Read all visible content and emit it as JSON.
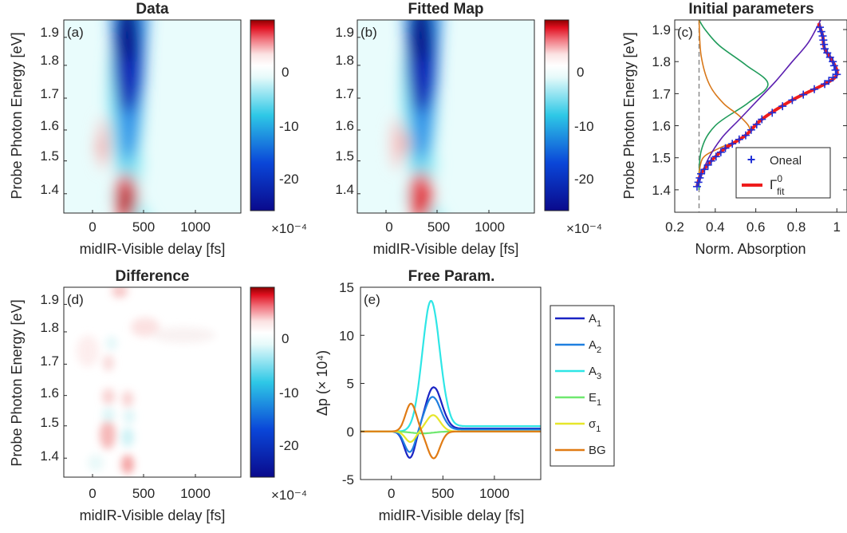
{
  "colors": {
    "A1": "#1a24c4",
    "A2": "#1f7fe0",
    "A3": "#2ee6e6",
    "E1": "#6fe86f",
    "sigma1": "#e6e62a",
    "BG": "#e07b14",
    "oneal": "#1f2fd6",
    "fit": "#ee1c1c",
    "c_green": "#1f9b5a",
    "c_purple": "#5b1fb0",
    "c_orange": "#d8781a"
  },
  "maps": [
    {
      "title": "Data",
      "label": "(a)",
      "xlabel": "midIR-Visible delay [fs]",
      "ylabel": "Probe Photon Energy [eV]",
      "xticks": [
        "0",
        "500",
        "1000"
      ],
      "yticks": [
        "1.9",
        "1.8",
        "1.7",
        "1.6",
        "1.5",
        "1.4"
      ],
      "cbar_ticks": [
        "0",
        "-10",
        "-20"
      ],
      "cbar_exp": "×10⁻⁴"
    },
    {
      "title": "Fitted Map",
      "label": "(b)",
      "xlabel": "midIR-Visible delay [fs]",
      "xticks": [
        "0",
        "500",
        "1000"
      ],
      "yticks": [
        "1.9",
        "1.8",
        "1.7",
        "1.6",
        "1.5",
        "1.4"
      ],
      "cbar_ticks": [
        "0",
        "-10",
        "-20"
      ],
      "cbar_exp": "×10⁻⁴"
    },
    {
      "title": "Difference",
      "label": "(d)",
      "xlabel": "midIR-Visible delay [fs]",
      "ylabel": "Probe Photon Energy [eV]",
      "xticks": [
        "0",
        "500",
        "1000"
      ],
      "yticks": [
        "1.9",
        "1.8",
        "1.7",
        "1.6",
        "1.5",
        "1.4"
      ],
      "cbar_ticks": [
        "0",
        "-10",
        "-20"
      ],
      "cbar_exp": "×10⁻⁴"
    }
  ],
  "chart_data": [
    {
      "type": "heatmap",
      "panel": "a",
      "title": "Data",
      "xlabel": "midIR-Visible delay [fs]",
      "ylabel": "Probe Photon Energy [eV]",
      "xlim": [
        -300,
        1450
      ],
      "ylim": [
        1.33,
        1.93
      ],
      "clim": [
        -25,
        8
      ],
      "colorbar_scale": "1e-4",
      "features": [
        {
          "kind": "bleach",
          "delay": 380,
          "energy": 1.83,
          "value": -25
        },
        {
          "kind": "bleach",
          "delay": 400,
          "energy": 1.38,
          "value": 8
        },
        {
          "kind": "induced",
          "delay": 110,
          "energy": 1.58,
          "value": 3
        }
      ]
    },
    {
      "type": "heatmap",
      "panel": "b",
      "title": "Fitted Map",
      "xlabel": "midIR-Visible delay [fs]",
      "xlim": [
        -300,
        1450
      ],
      "ylim": [
        1.33,
        1.93
      ],
      "clim": [
        -25,
        8
      ],
      "colorbar_scale": "1e-4"
    },
    {
      "type": "line",
      "panel": "c",
      "title": "Initial parameters",
      "label": "(c)",
      "xlabel": "Norm. Absorption",
      "ylabel": "Probe Photon Energy [eV]",
      "xlim": [
        0.2,
        1.05
      ],
      "ylim": [
        1.33,
        1.93
      ],
      "xticks": [
        "0.2",
        "0.4",
        "0.6",
        "0.8",
        "1"
      ],
      "yticks": [
        "1.9",
        "1.8",
        "1.7",
        "1.6",
        "1.5",
        "1.4"
      ],
      "legend": {
        "location": "bottom-right",
        "entries": [
          "Oneal",
          "Γ"
        ],
        "fit_sup": "0",
        "fit_sub": "fit"
      },
      "series": [
        {
          "name": "Oneal",
          "marker": "+",
          "x": [
            0.31,
            0.33,
            0.38,
            0.45,
            0.55,
            0.63,
            0.78,
            0.94,
            1.0,
            0.98,
            0.94,
            0.93,
            0.91
          ],
          "y": [
            1.41,
            1.45,
            1.49,
            1.53,
            1.57,
            1.62,
            1.68,
            1.73,
            1.76,
            1.8,
            1.84,
            1.88,
            1.92
          ]
        },
        {
          "name": "Γ_fit^0",
          "x": [
            0.31,
            0.33,
            0.38,
            0.45,
            0.55,
            0.63,
            0.78,
            0.94,
            1.0,
            0.98,
            0.94,
            0.93,
            0.91
          ],
          "y": [
            1.41,
            1.45,
            1.49,
            1.53,
            1.57,
            1.62,
            1.68,
            1.73,
            1.76,
            1.8,
            1.84,
            1.88,
            1.92
          ]
        },
        {
          "x": [
            0.32,
            0.33,
            0.4,
            0.56,
            0.66,
            0.55,
            0.42,
            0.35,
            0.32
          ],
          "y": [
            1.4,
            1.52,
            1.6,
            1.67,
            1.73,
            1.79,
            1.85,
            1.9,
            1.93
          ]
        },
        {
          "x": [
            0.32,
            0.34,
            0.42,
            0.53,
            0.57,
            0.52,
            0.44,
            0.37,
            0.33,
            0.32
          ],
          "y": [
            1.45,
            1.5,
            1.53,
            1.56,
            1.59,
            1.63,
            1.67,
            1.73,
            1.82,
            1.93
          ]
        },
        {
          "x": [
            0.32,
            0.36,
            0.43,
            0.52,
            0.61,
            0.7,
            0.78,
            0.86,
            0.92
          ],
          "y": [
            1.42,
            1.49,
            1.56,
            1.62,
            1.68,
            1.74,
            1.8,
            1.86,
            1.93
          ]
        }
      ],
      "baseline_x": 0.32
    },
    {
      "type": "heatmap",
      "panel": "d",
      "title": "Difference",
      "xlabel": "midIR-Visible delay [fs]",
      "ylabel": "Probe Photon Energy [eV]",
      "xlim": [
        -300,
        1450
      ],
      "ylim": [
        1.33,
        1.93
      ],
      "clim": [
        -25,
        8
      ],
      "colorbar_scale": "1e-4"
    },
    {
      "type": "line",
      "panel": "e",
      "title": "Free Param.",
      "label": "(e)",
      "xlabel": "midIR-Visible delay [fs]",
      "ylabel": "Δp (× 10⁴)",
      "xlim": [
        -300,
        1450
      ],
      "ylim": [
        -5,
        15
      ],
      "xticks": [
        "0",
        "500",
        "1000"
      ],
      "yticks": [
        "15",
        "10",
        "5",
        "0",
        "-5"
      ],
      "legend": {
        "location": "outside-right",
        "entries": [
          {
            "main": "A",
            "sub": "1",
            "key": "A1"
          },
          {
            "main": "A",
            "sub": "2",
            "key": "A2"
          },
          {
            "main": "A",
            "sub": "3",
            "key": "A3"
          },
          {
            "main": "E",
            "sub": "1",
            "key": "E1"
          },
          {
            "main": "σ",
            "sub": "1",
            "key": "sigma1"
          },
          {
            "main": "BG",
            "sub": "",
            "key": "BG"
          }
        ]
      },
      "series": [
        {
          "name": "A1",
          "peaks": [
            {
              "t": 410,
              "amp": 4.6,
              "w": 110
            },
            {
              "t": 180,
              "amp": -2.8,
              "w": 75
            }
          ],
          "baseline": 0.3
        },
        {
          "name": "A2",
          "peaks": [
            {
              "t": 400,
              "amp": 3.6,
              "w": 110
            },
            {
              "t": 180,
              "amp": -2.2,
              "w": 75
            }
          ],
          "baseline": 0.2
        },
        {
          "name": "A3",
          "peaks": [
            {
              "t": 385,
              "amp": 13.6,
              "w": 120
            }
          ],
          "baseline": 0.55
        },
        {
          "name": "E1",
          "peaks": [
            {
              "t": 300,
              "amp": -0.2,
              "w": 150
            }
          ],
          "baseline": 0.0
        },
        {
          "name": "σ1",
          "peaks": [
            {
              "t": 405,
              "amp": 1.7,
              "w": 95
            },
            {
              "t": 185,
              "amp": -1.1,
              "w": 70
            }
          ],
          "baseline": 0.0
        },
        {
          "name": "BG",
          "peaks": [
            {
              "t": 190,
              "amp": 2.9,
              "w": 75
            },
            {
              "t": 410,
              "amp": -2.8,
              "w": 85
            }
          ],
          "baseline": 0.0
        }
      ]
    }
  ]
}
